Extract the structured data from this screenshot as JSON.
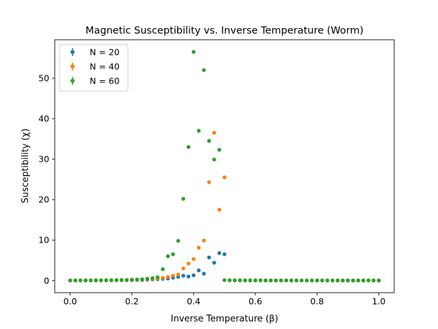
{
  "chart_data": {
    "type": "scatter",
    "title": "Magnetic Susceptibility vs. Inverse Temperature (Worm)",
    "xlabel": "Inverse Temperature (β)",
    "ylabel": "Susceptibility (χ)",
    "xlim": [
      -0.05,
      1.05
    ],
    "ylim": [
      -3,
      59.5
    ],
    "xticks": [
      0.0,
      0.2,
      0.4,
      0.6,
      0.8,
      1.0
    ],
    "xtick_labels": [
      "0.0",
      "0.2",
      "0.4",
      "0.6",
      "0.8",
      "1.0"
    ],
    "yticks": [
      0,
      10,
      20,
      30,
      40,
      50
    ],
    "ytick_labels": [
      "0",
      "10",
      "20",
      "30",
      "40",
      "50"
    ],
    "grid": false,
    "legend_position": "top-left",
    "x": [
      0.0,
      0.0167,
      0.0333,
      0.05,
      0.0667,
      0.0833,
      0.1,
      0.1167,
      0.1333,
      0.15,
      0.1667,
      0.1833,
      0.2,
      0.2167,
      0.2333,
      0.25,
      0.2667,
      0.2833,
      0.3,
      0.3167,
      0.3333,
      0.35,
      0.3667,
      0.3833,
      0.4,
      0.4167,
      0.4333,
      0.45,
      0.4667,
      0.4833,
      0.5,
      0.5167,
      0.5333,
      0.55,
      0.5667,
      0.5833,
      0.6,
      0.6167,
      0.6333,
      0.65,
      0.6667,
      0.6833,
      0.7,
      0.7167,
      0.7333,
      0.75,
      0.7667,
      0.7833,
      0.8,
      0.8167,
      0.8333,
      0.85,
      0.8667,
      0.8833,
      0.9,
      0.9167,
      0.9333,
      0.95,
      0.9667,
      0.9833,
      1.0
    ],
    "series": [
      {
        "name": "N = 20",
        "color": "#1f77b4",
        "values": [
          0.02,
          0.02,
          0.02,
          0.03,
          0.03,
          0.03,
          0.04,
          0.04,
          0.05,
          0.06,
          0.07,
          0.08,
          0.1,
          0.12,
          0.15,
          0.2,
          0.25,
          0.32,
          0.4,
          0.5,
          0.7,
          0.9,
          1.2,
          1.0,
          1.3,
          2.5,
          1.7,
          5.7,
          4.4,
          6.8,
          6.5,
          0.05,
          0.05,
          0.04,
          0.04,
          0.03,
          0.03,
          0.03,
          0.03,
          0.02,
          0.02,
          0.02,
          0.02,
          0.02,
          0.02,
          0.02,
          0.02,
          0.02,
          0.02,
          0.02,
          0.02,
          0.02,
          0.01,
          0.01,
          0.01,
          0.01,
          0.01,
          0.01,
          0.01,
          0.01,
          0.01
        ]
      },
      {
        "name": "N = 40",
        "color": "#ff7f0e",
        "values": [
          0.02,
          0.02,
          0.03,
          0.03,
          0.04,
          0.04,
          0.05,
          0.06,
          0.07,
          0.08,
          0.1,
          0.12,
          0.15,
          0.2,
          0.25,
          0.3,
          0.4,
          0.5,
          0.65,
          0.9,
          1.2,
          1.5,
          3.0,
          4.2,
          5.3,
          8.1,
          9.9,
          24.3,
          36.5,
          17.5,
          25.5,
          0.05,
          0.05,
          0.04,
          0.04,
          0.03,
          0.03,
          0.03,
          0.03,
          0.02,
          0.02,
          0.02,
          0.02,
          0.02,
          0.02,
          0.02,
          0.02,
          0.02,
          0.02,
          0.02,
          0.02,
          0.02,
          0.01,
          0.01,
          0.01,
          0.01,
          0.01,
          0.01,
          0.01,
          0.01,
          0.01
        ]
      },
      {
        "name": "N = 60",
        "color": "#2ca02c",
        "values": [
          0.02,
          0.02,
          0.03,
          0.03,
          0.04,
          0.05,
          0.06,
          0.07,
          0.08,
          0.1,
          0.12,
          0.15,
          0.2,
          0.25,
          0.32,
          0.45,
          0.6,
          0.8,
          2.8,
          6.0,
          6.5,
          9.8,
          20.2,
          33.0,
          56.5,
          37.0,
          52.0,
          34.5,
          29.9,
          32.3,
          0.1,
          0.05,
          0.04,
          0.04,
          0.03,
          0.03,
          0.03,
          0.03,
          0.02,
          0.02,
          0.02,
          0.02,
          0.02,
          0.02,
          0.02,
          0.02,
          0.02,
          0.02,
          0.02,
          0.02,
          0.02,
          0.02,
          0.01,
          0.01,
          0.01,
          0.01,
          0.01,
          0.01,
          0.01,
          0.01,
          0.01
        ]
      }
    ]
  }
}
